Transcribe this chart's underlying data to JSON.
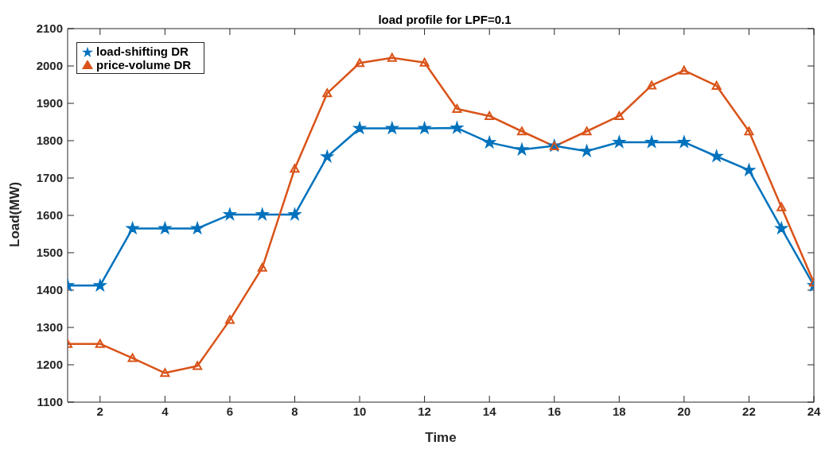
{
  "chart_data": {
    "type": "line",
    "title": "load profile for LPF=0.1",
    "xlabel": "Time",
    "ylabel": "Load(MW)",
    "x": [
      1,
      2,
      3,
      4,
      5,
      6,
      7,
      8,
      9,
      10,
      11,
      12,
      13,
      14,
      15,
      16,
      17,
      18,
      19,
      20,
      21,
      22,
      23,
      24
    ],
    "series": [
      {
        "name": "load-shifting DR",
        "color": "#0072bd",
        "marker": "star",
        "values": [
          1412,
          1412,
          1565,
          1565,
          1565,
          1602,
          1602,
          1602,
          1757,
          1833,
          1833,
          1833,
          1834,
          1795,
          1776,
          1786,
          1772,
          1796,
          1796,
          1796,
          1758,
          1721,
          1565,
          1412
        ]
      },
      {
        "name": "price-volume DR",
        "color": "#d95319",
        "marker": "triangle",
        "values": [
          1256,
          1256,
          1218,
          1178,
          1197,
          1320,
          1460,
          1725,
          1927,
          2008,
          2022,
          2009,
          1885,
          1866,
          1825,
          1785,
          1825,
          1866,
          1948,
          1988,
          1947,
          1825,
          1622,
          1420
        ]
      }
    ],
    "xlim": [
      1,
      24
    ],
    "xticks": [
      2,
      4,
      6,
      8,
      10,
      12,
      14,
      16,
      18,
      20,
      22,
      24
    ],
    "ylim": [
      1100,
      2100
    ],
    "yticks": [
      1100,
      1200,
      1300,
      1400,
      1500,
      1600,
      1700,
      1800,
      1900,
      2000,
      2100
    ],
    "grid": false,
    "legend": "top left",
    "line_style": "solid"
  }
}
